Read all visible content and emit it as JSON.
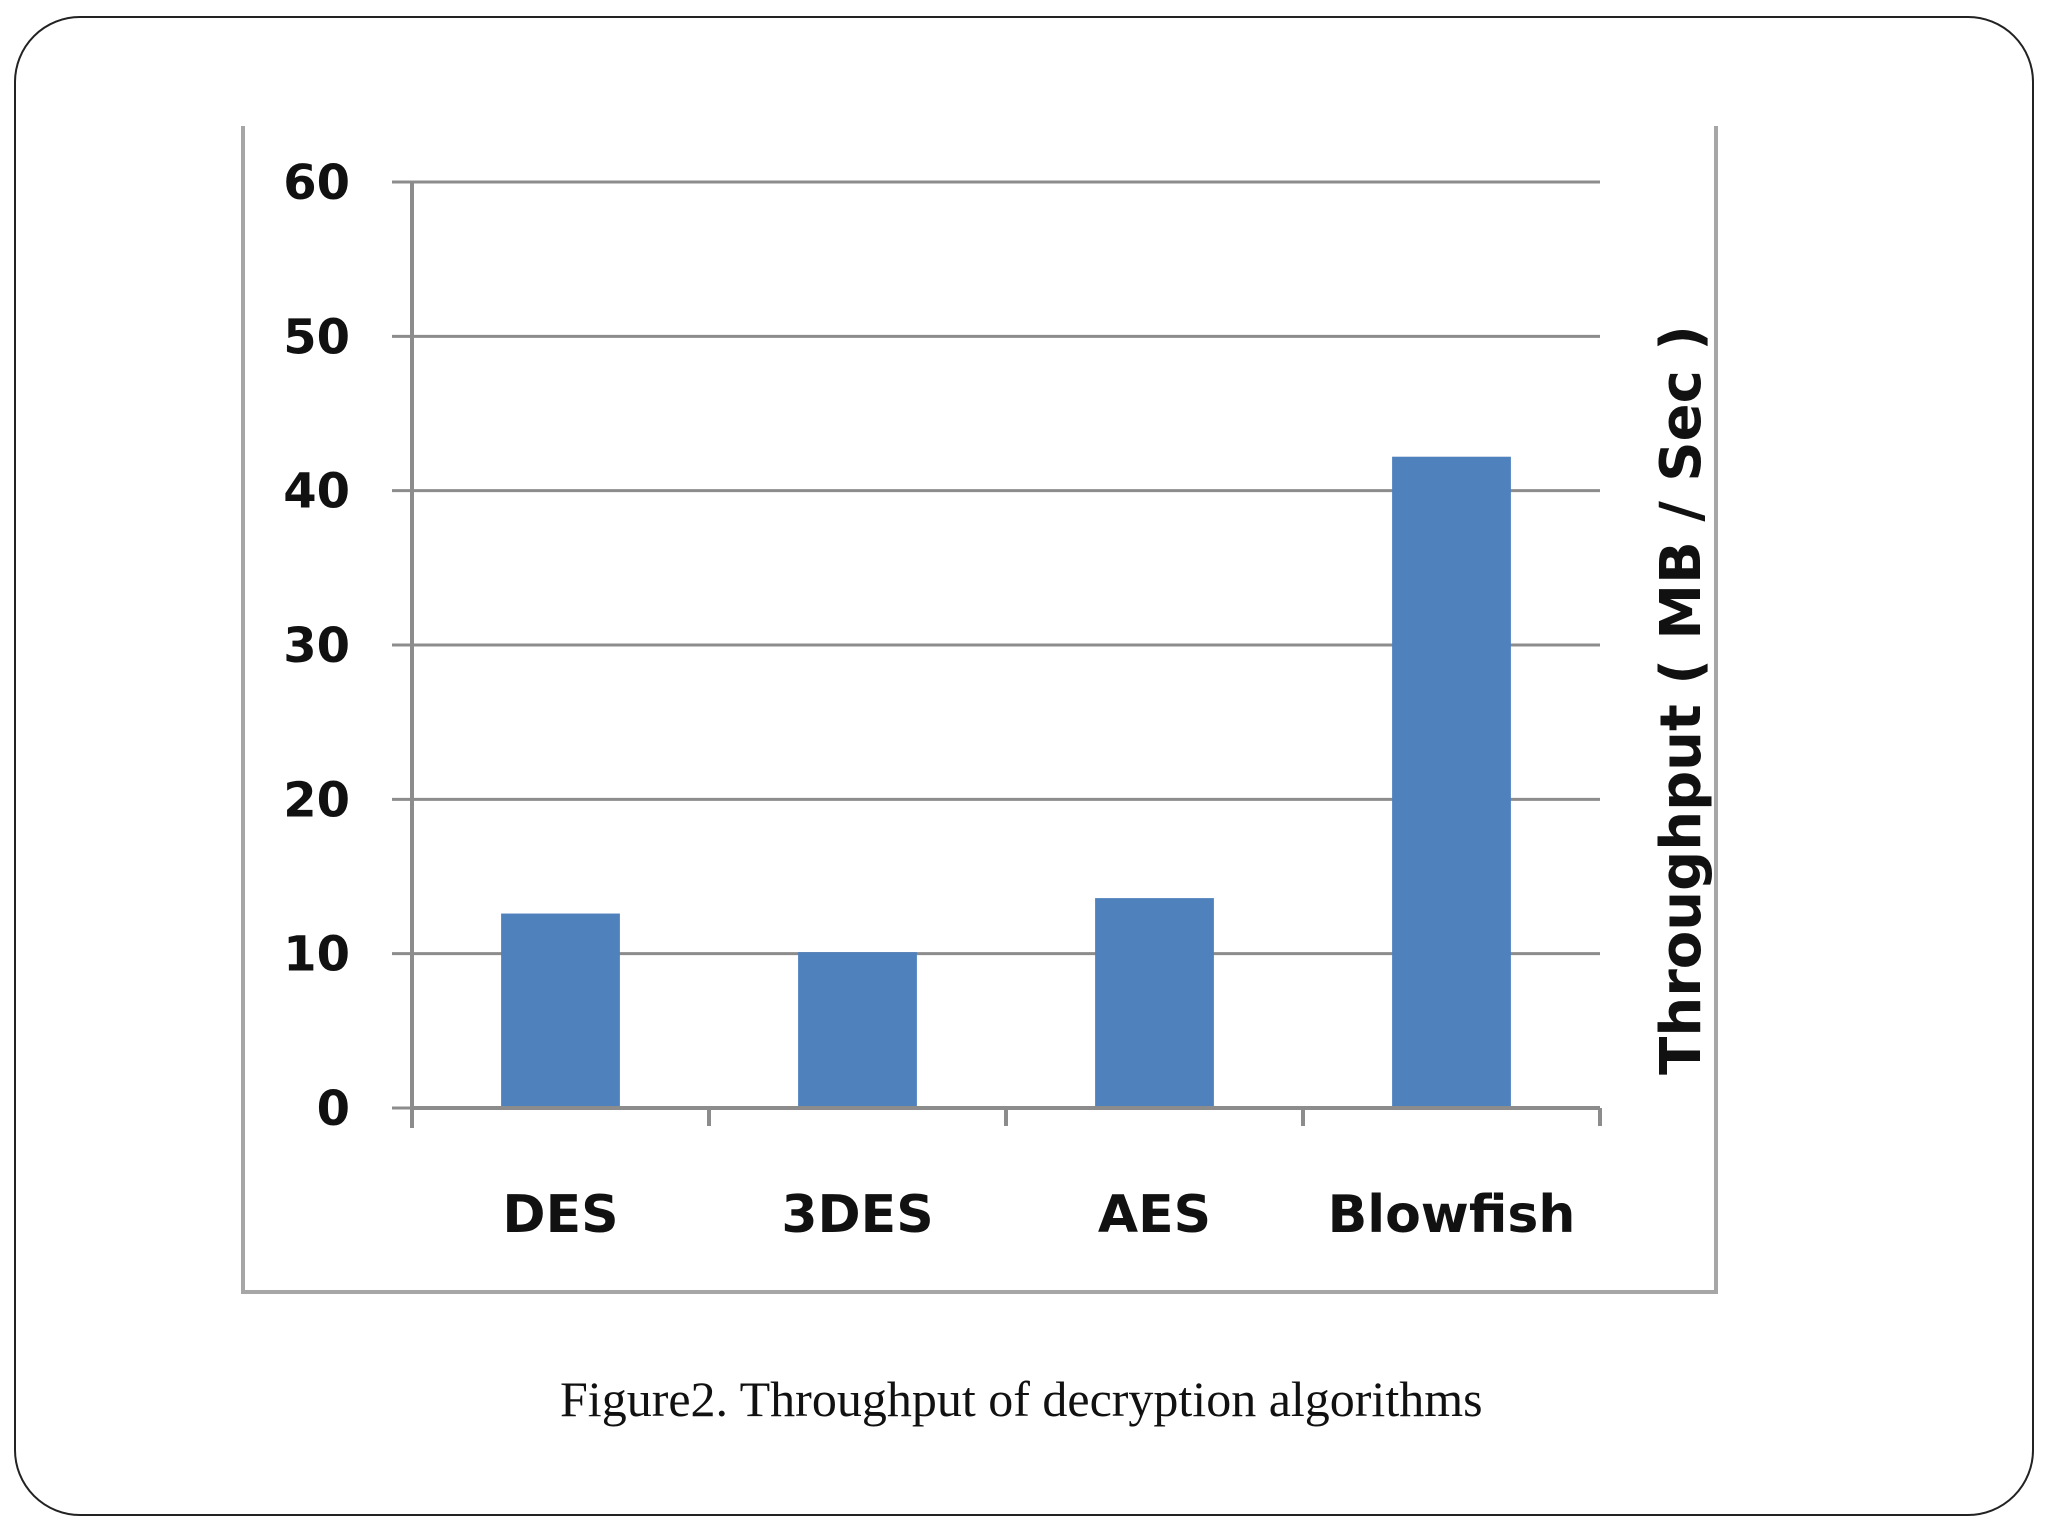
{
  "caption": "Figure2. Throughput of decryption algorithms",
  "colors": {
    "bar": "#4f81bd",
    "grid": "#8c8c8c",
    "axis": "#8c8c8c",
    "chart_border": "#a6a6a6"
  },
  "chart_data": {
    "type": "bar",
    "categories": [
      "DES",
      "3DES",
      "AES",
      "Blowfish"
    ],
    "values": [
      12.6,
      10.1,
      13.6,
      42.2
    ],
    "title": "",
    "xlabel": "",
    "ylabel": "Throughput ( MB / Sec )",
    "ylim": [
      0,
      60
    ],
    "yticks": [
      0,
      10,
      20,
      30,
      40,
      50,
      60
    ],
    "grid": true,
    "legend": "none"
  }
}
